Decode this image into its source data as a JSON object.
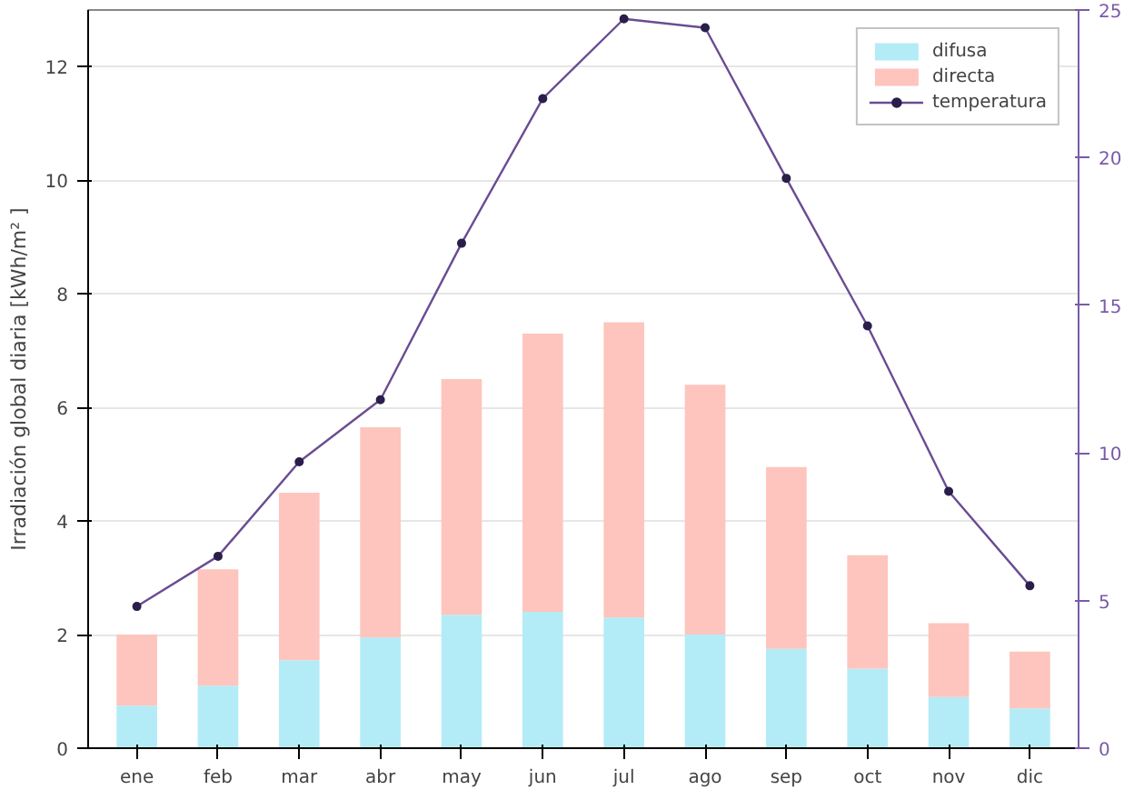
{
  "chart_data": {
    "type": "bar",
    "stacked": true,
    "ylabel": "Irradiación global diaria [kWh/m² ]",
    "categories": [
      "ene",
      "feb",
      "mar",
      "abr",
      "may",
      "jun",
      "jul",
      "ago",
      "sep",
      "oct",
      "nov",
      "dic"
    ],
    "series": [
      {
        "name": "difusa",
        "color": "#b3ecf7",
        "values": [
          0.75,
          1.1,
          1.55,
          1.95,
          2.35,
          2.4,
          2.3,
          2.0,
          1.75,
          1.4,
          0.9,
          0.7
        ]
      },
      {
        "name": "directa",
        "color": "#fdc5bd",
        "values": [
          1.25,
          2.05,
          2.95,
          3.7,
          4.15,
          4.9,
          5.2,
          4.4,
          3.2,
          2.0,
          1.3,
          1.0
        ]
      },
      {
        "name": "temperatura",
        "type": "line",
        "axis": "y2",
        "marker": "circle",
        "color": "#6a4c93",
        "values": [
          4.8,
          6.5,
          9.7,
          11.8,
          17.1,
          22.0,
          24.7,
          24.4,
          19.3,
          14.3,
          8.7,
          5.5
        ]
      }
    ],
    "ylim": [
      0,
      13
    ],
    "yticks": [
      0,
      2,
      4,
      6,
      8,
      10,
      12
    ],
    "y2lim": [
      0,
      25
    ],
    "y2ticks": [
      0,
      5,
      10,
      15,
      20,
      25
    ],
    "grid": "y",
    "legend": "top right"
  }
}
